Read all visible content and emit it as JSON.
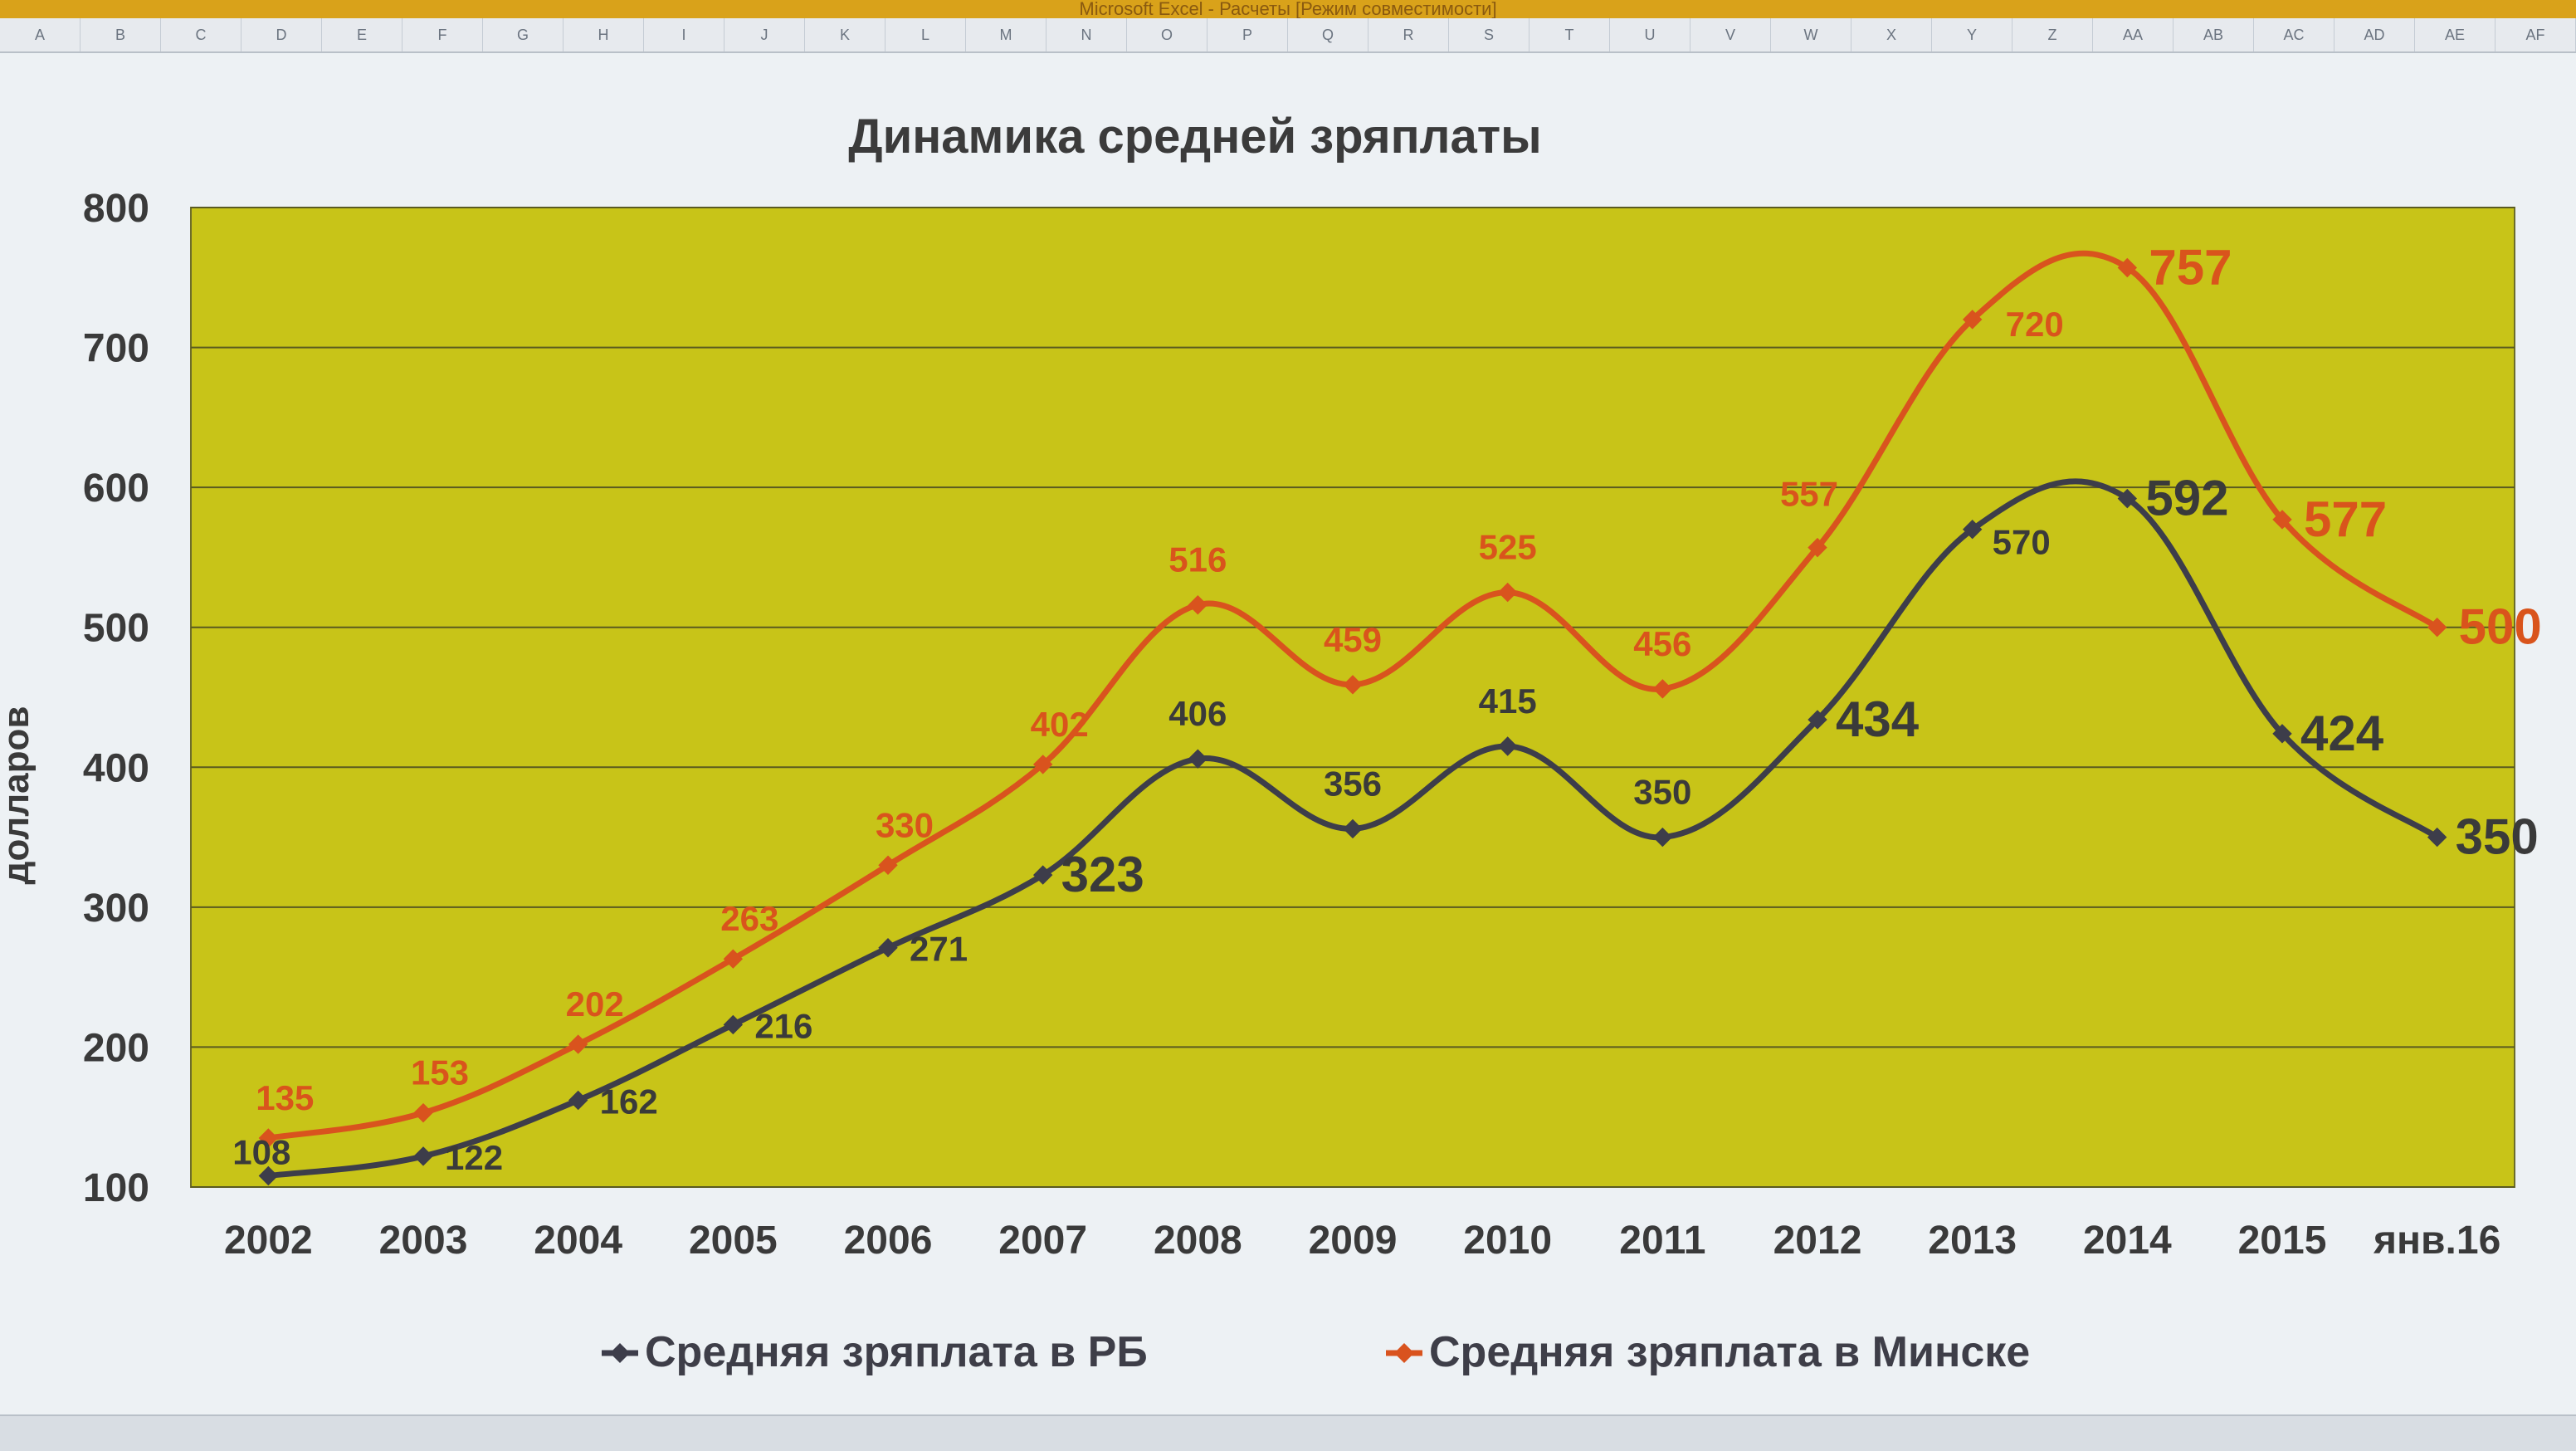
{
  "window": {
    "title": "Microsoft Excel - Расчеты  [Режим совместимости]"
  },
  "column_headers": [
    "A",
    "B",
    "C",
    "D",
    "E",
    "F",
    "G",
    "H",
    "I",
    "J",
    "K",
    "L",
    "M",
    "N",
    "O",
    "P",
    "Q",
    "R",
    "S",
    "T",
    "U",
    "V",
    "W",
    "X",
    "Y",
    "Z",
    "AA",
    "AB",
    "AC",
    "AD",
    "AE",
    "AF"
  ],
  "colors": {
    "plot_background": "#c8c418",
    "series_rb": "#3d3d4a",
    "series_minsk": "#d9531e",
    "label_rb": "#3a3a3a",
    "label_minsk": "#d9541c",
    "gridline": "#5a5a20"
  },
  "chart_data": {
    "type": "line",
    "title": "Динамика средней зряплаты",
    "xlabel": "",
    "ylabel": "долларов",
    "categories": [
      "2002",
      "2003",
      "2004",
      "2005",
      "2006",
      "2007",
      "2008",
      "2009",
      "2010",
      "2011",
      "2012",
      "2013",
      "2014",
      "2015",
      "янв.16"
    ],
    "ylim": [
      100,
      800
    ],
    "yticks": [
      100,
      200,
      300,
      400,
      500,
      600,
      700,
      800
    ],
    "grid": true,
    "smooth": true,
    "legend_position": "bottom",
    "series": [
      {
        "name": "Средняя зряплата в РБ",
        "values": [
          108,
          122,
          162,
          216,
          271,
          323,
          406,
          356,
          415,
          350,
          434,
          570,
          592,
          424,
          350
        ],
        "color": "#3d3d4a",
        "marker": "diamond",
        "large_labels": [
          5,
          10,
          12,
          13,
          14
        ]
      },
      {
        "name": "Средняя зряплата в Минске",
        "values": [
          135,
          153,
          202,
          263,
          330,
          402,
          516,
          459,
          525,
          456,
          557,
          720,
          757,
          577,
          500
        ],
        "color": "#d9531e",
        "marker": "diamond",
        "large_labels": [
          12,
          13,
          14
        ]
      }
    ]
  }
}
